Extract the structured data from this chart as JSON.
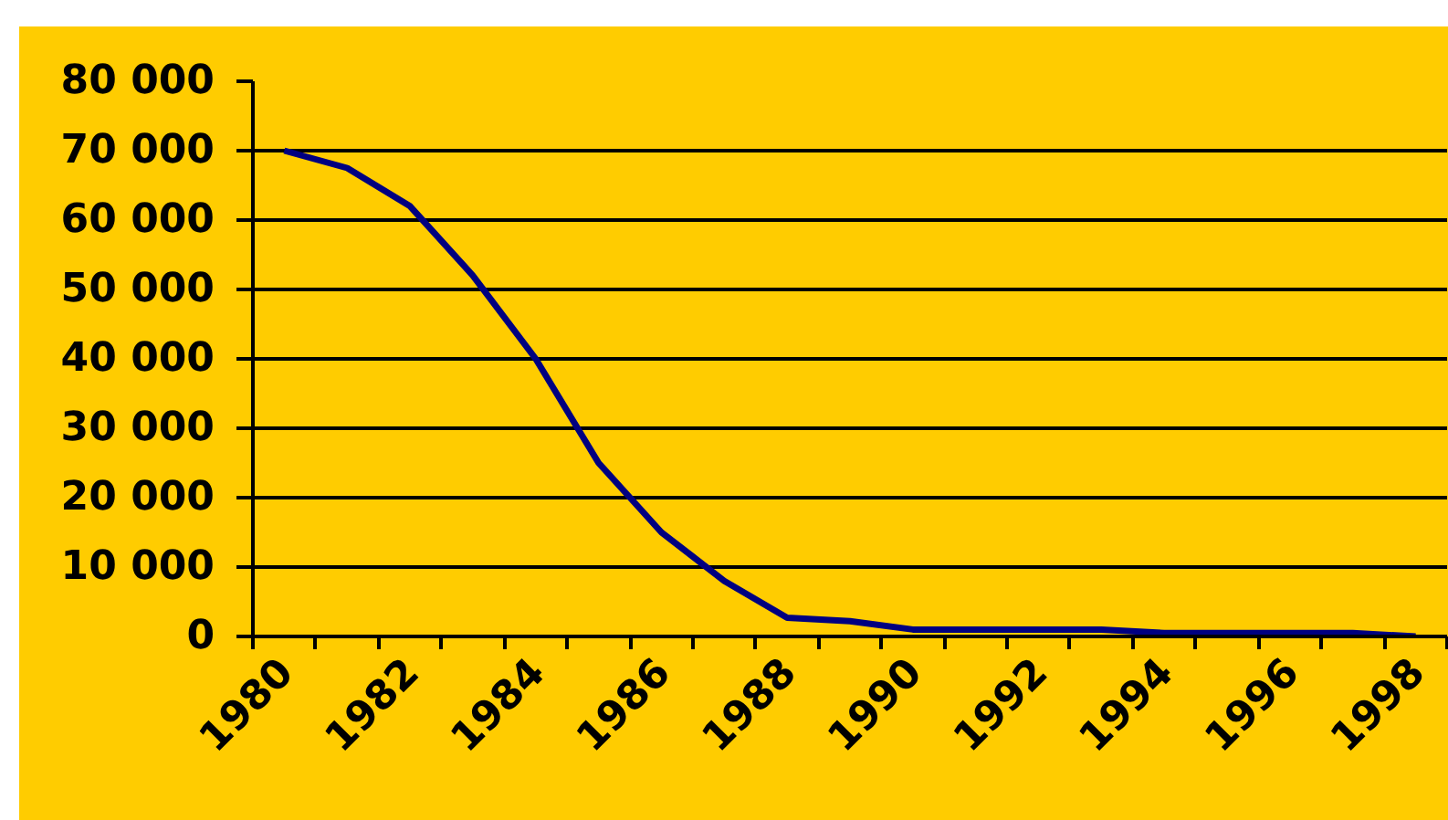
{
  "chart_data": {
    "type": "line",
    "categories": [
      "1980",
      null,
      "1982",
      null,
      "1984",
      null,
      "1986",
      null,
      "1988",
      null,
      "1990",
      null,
      "1992",
      null,
      "1994",
      null,
      "1996",
      null,
      "1998"
    ],
    "series": [
      {
        "color": "#000080",
        "values": [
          70000,
          67500,
          62000,
          52000,
          40000,
          25000,
          15000,
          8000,
          2700,
          2200,
          1000,
          1000,
          1000,
          1000,
          500,
          500,
          500,
          500,
          0
        ]
      }
    ],
    "ylim": [
      0,
      80000
    ],
    "yticks": [
      0,
      {
        "value": 10000,
        "label": "10 000"
      },
      {
        "value": 20000,
        "label": "20 000"
      },
      {
        "value": 30000,
        "label": "30 000"
      },
      {
        "value": 40000,
        "label": "40 000"
      },
      {
        "value": 50000,
        "label": "50 000"
      },
      {
        "value": 60000,
        "label": "60 000"
      },
      {
        "value": 70000,
        "label": "70 000"
      },
      {
        "value": 80000,
        "label": "80 000"
      }
    ],
    "grid": "y"
  }
}
